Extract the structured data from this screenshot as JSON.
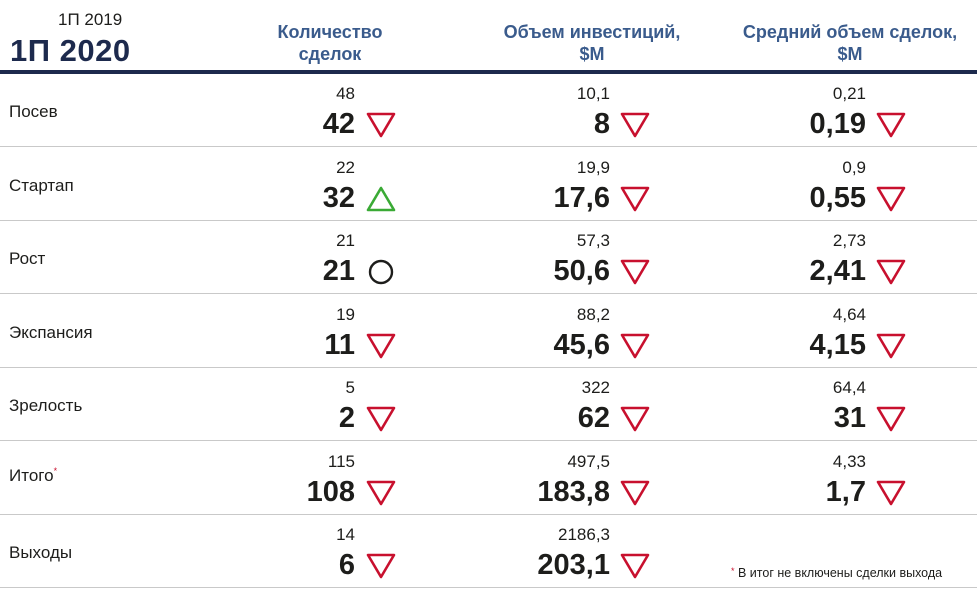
{
  "header": {
    "year_prev": "1П 2019",
    "year_current": "1П 2020",
    "col_deals": [
      "Количество",
      "сделок"
    ],
    "col_investment": [
      "Объем инвестиций,",
      "$M"
    ],
    "col_avg": [
      "Средний объем сделок,",
      "$M"
    ]
  },
  "colors": {
    "navy": "#1d2a4d",
    "header_blue": "#3a5b8c",
    "down": "#c8102e",
    "up": "#3aaa35",
    "same": "#1d1d1b"
  },
  "rows": [
    {
      "label": "Посев",
      "label_suffix": "",
      "deals_prev": "48",
      "deals_cur": "42",
      "deals_icon": "down-triangle-icon",
      "inv_prev": "10,1",
      "inv_cur": "8",
      "inv_icon": "down-triangle-icon",
      "avg_prev": "0,21",
      "avg_cur": "0,19",
      "avg_icon": "down-triangle-icon"
    },
    {
      "label": "Стартап",
      "label_suffix": "",
      "deals_prev": "22",
      "deals_cur": "32",
      "deals_icon": "up-triangle-icon",
      "inv_prev": "19,9",
      "inv_cur": "17,6",
      "inv_icon": "down-triangle-icon",
      "avg_prev": "0,9",
      "avg_cur": "0,55",
      "avg_icon": "down-triangle-icon"
    },
    {
      "label": "Рост",
      "label_suffix": "",
      "deals_prev": "21",
      "deals_cur": "21",
      "deals_icon": "circle-icon",
      "inv_prev": "57,3",
      "inv_cur": "50,6",
      "inv_icon": "down-triangle-icon",
      "avg_prev": "2,73",
      "avg_cur": "2,41",
      "avg_icon": "down-triangle-icon"
    },
    {
      "label": "Экспансия",
      "label_suffix": "",
      "deals_prev": "19",
      "deals_cur": "11",
      "deals_icon": "down-triangle-icon",
      "inv_prev": "88,2",
      "inv_cur": "45,6",
      "inv_icon": "down-triangle-icon",
      "avg_prev": "4,64",
      "avg_cur": "4,15",
      "avg_icon": "down-triangle-icon"
    },
    {
      "label": "Зрелость",
      "label_suffix": "",
      "deals_prev": "5",
      "deals_cur": "2",
      "deals_icon": "down-triangle-icon",
      "inv_prev": "322",
      "inv_cur": "62",
      "inv_icon": "down-triangle-icon",
      "avg_prev": "64,4",
      "avg_cur": "31",
      "avg_icon": "down-triangle-icon"
    },
    {
      "label": "Итого",
      "label_suffix": "*",
      "deals_prev": "115",
      "deals_cur": "108",
      "deals_icon": "down-triangle-icon",
      "inv_prev": "497,5",
      "inv_cur": "183,8",
      "inv_icon": "down-triangle-icon",
      "avg_prev": "4,33",
      "avg_cur": "1,7",
      "avg_icon": "down-triangle-icon"
    },
    {
      "label": "Выходы",
      "label_suffix": "",
      "deals_prev": "14",
      "deals_cur": "6",
      "deals_icon": "down-triangle-icon",
      "inv_prev": "2186,3",
      "inv_cur": "203,1",
      "inv_icon": "down-triangle-icon",
      "avg_prev": "",
      "avg_cur": "",
      "avg_icon": ""
    }
  ],
  "footnote": {
    "star": "*",
    "text": " В итог не включены сделки выхода"
  }
}
